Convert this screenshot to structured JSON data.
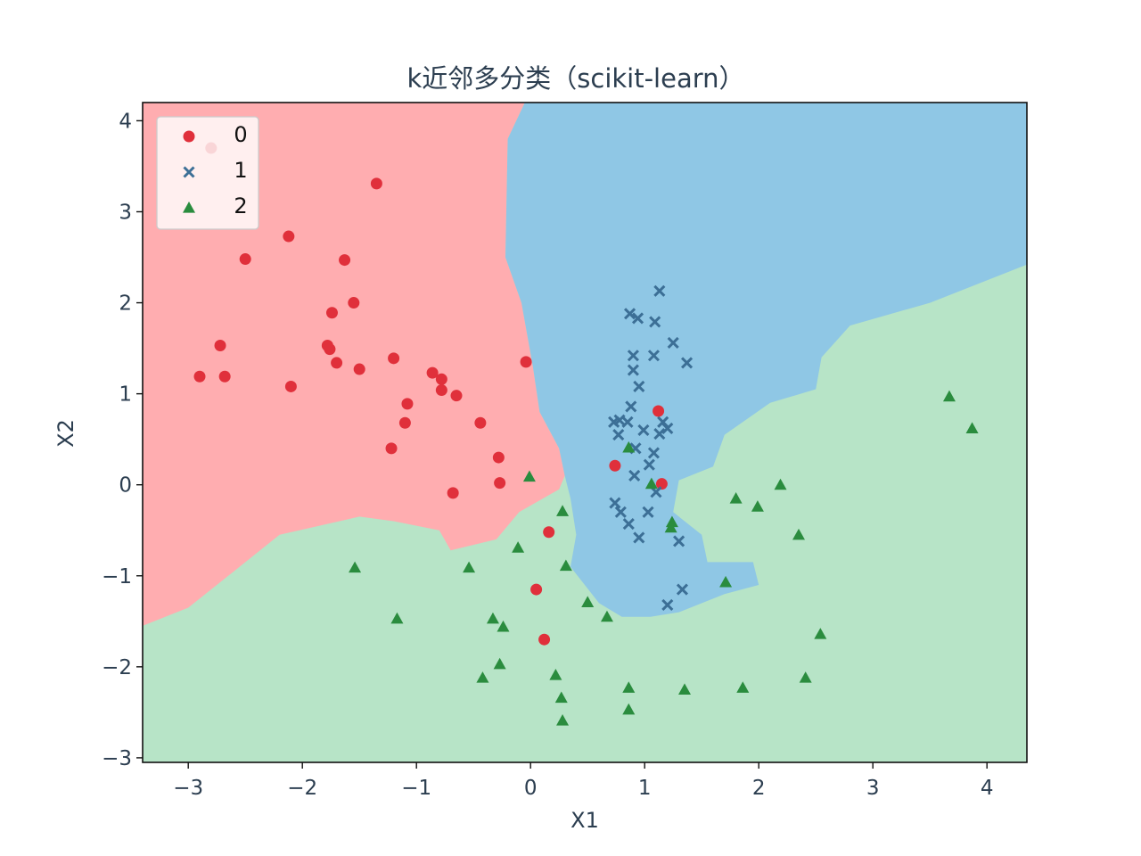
{
  "chart_data": {
    "type": "scatter",
    "title": "k近邻多分类（scikit-learn）",
    "xlabel": "X1",
    "ylabel": "X2",
    "xlim": [
      -3.4,
      4.35
    ],
    "ylim": [
      -3.05,
      4.2
    ],
    "xticks": [
      -3,
      -2,
      -1,
      0,
      1,
      2,
      3,
      4
    ],
    "yticks": [
      -3,
      -2,
      -1,
      0,
      1,
      2,
      3,
      4
    ],
    "xtick_labels": [
      "−3",
      "−2",
      "−1",
      "0",
      "1",
      "2",
      "3",
      "4"
    ],
    "ytick_labels": [
      "−3",
      "−2",
      "−1",
      "0",
      "1",
      "2",
      "3",
      "4"
    ],
    "grid": false,
    "legend": {
      "position": "top-left",
      "entries": [
        "0",
        "1",
        "2"
      ]
    },
    "regions": {
      "class0_color": "#ffadb0",
      "class1_color": "#8fc7e5",
      "class2_color": "#b7e4c7",
      "class0_boundary": [
        [
          -3.4,
          4.2
        ],
        [
          -0.05,
          4.2
        ],
        [
          -0.2,
          3.8
        ],
        [
          -0.22,
          2.5
        ],
        [
          -0.08,
          2.0
        ],
        [
          0.02,
          1.3
        ],
        [
          0.08,
          0.8
        ],
        [
          0.25,
          0.4
        ],
        [
          0.3,
          0.1
        ],
        [
          0.25,
          -0.05
        ],
        [
          -0.1,
          -0.3
        ],
        [
          -0.3,
          -0.6
        ],
        [
          -0.7,
          -0.72
        ],
        [
          -0.8,
          -0.5
        ],
        [
          -1.2,
          -0.4
        ],
        [
          -1.5,
          -0.35
        ],
        [
          -2.2,
          -0.55
        ],
        [
          -2.6,
          -0.95
        ],
        [
          -3.0,
          -1.35
        ],
        [
          -3.4,
          -1.55
        ]
      ],
      "class1_boundary": [
        [
          -0.05,
          4.2
        ],
        [
          4.35,
          4.2
        ],
        [
          4.35,
          2.42
        ],
        [
          3.5,
          2.0
        ],
        [
          2.8,
          1.75
        ],
        [
          2.55,
          1.4
        ],
        [
          2.5,
          1.05
        ],
        [
          2.1,
          0.9
        ],
        [
          1.7,
          0.55
        ],
        [
          1.6,
          0.2
        ],
        [
          1.3,
          0.05
        ],
        [
          1.25,
          -0.3
        ],
        [
          1.5,
          -0.55
        ],
        [
          1.55,
          -0.85
        ],
        [
          1.95,
          -0.85
        ],
        [
          2.0,
          -1.1
        ],
        [
          1.7,
          -1.2
        ],
        [
          1.3,
          -1.4
        ],
        [
          1.05,
          -1.45
        ],
        [
          0.8,
          -1.45
        ],
        [
          0.6,
          -1.3
        ],
        [
          0.35,
          -0.9
        ],
        [
          0.4,
          -0.55
        ],
        [
          0.35,
          -0.15
        ],
        [
          0.3,
          0.1
        ],
        [
          0.25,
          0.4
        ],
        [
          0.08,
          0.8
        ],
        [
          0.02,
          1.3
        ],
        [
          -0.08,
          2.0
        ],
        [
          -0.22,
          2.5
        ],
        [
          -0.2,
          3.8
        ]
      ]
    },
    "series": [
      {
        "name": "0",
        "marker": "circle",
        "color": "#e0303b",
        "x": [
          -2.8,
          -1.35,
          -2.12,
          -2.5,
          -1.63,
          -1.55,
          -1.74,
          -2.72,
          -1.78,
          -1.76,
          -1.7,
          -2.9,
          -2.68,
          -1.5,
          -1.2,
          -0.86,
          -0.78,
          -2.1,
          -0.78,
          -0.65,
          -1.08,
          -1.1,
          -0.44,
          -1.22,
          -0.28,
          -0.27,
          -0.68,
          -0.04,
          0.74,
          1.12,
          1.15,
          0.16,
          0.05,
          0.12
        ],
        "y": [
          3.7,
          3.31,
          2.73,
          2.48,
          2.47,
          2.0,
          1.89,
          1.53,
          1.53,
          1.49,
          1.34,
          1.19,
          1.19,
          1.27,
          1.39,
          1.23,
          1.16,
          1.08,
          1.04,
          0.98,
          0.89,
          0.68,
          0.68,
          0.4,
          0.3,
          0.02,
          -0.09,
          1.35,
          0.21,
          0.81,
          0.01,
          -0.52,
          -1.15,
          -1.7
        ]
      },
      {
        "name": "1",
        "marker": "x",
        "color": "#3c6f96",
        "x": [
          1.13,
          0.87,
          0.94,
          1.09,
          1.25,
          0.9,
          1.08,
          1.37,
          0.9,
          0.95,
          0.88,
          0.78,
          0.73,
          0.85,
          0.99,
          1.13,
          1.16,
          1.2,
          0.77,
          0.92,
          1.08,
          1.04,
          0.91,
          1.1,
          0.74,
          0.79,
          1.03,
          0.86,
          0.95,
          1.3,
          1.33,
          1.2
        ],
        "y": [
          2.13,
          1.88,
          1.83,
          1.79,
          1.56,
          1.42,
          1.42,
          1.34,
          1.26,
          1.08,
          0.86,
          0.71,
          0.69,
          0.69,
          0.6,
          0.56,
          0.69,
          0.62,
          0.55,
          0.4,
          0.35,
          0.22,
          0.1,
          -0.08,
          -0.2,
          -0.3,
          -0.3,
          -0.43,
          -0.58,
          -0.62,
          -1.15,
          -1.32
        ]
      },
      {
        "name": "2",
        "marker": "triangle",
        "color": "#2a8c3e",
        "x": [
          3.67,
          3.87,
          0.86,
          -0.01,
          1.06,
          2.19,
          1.8,
          1.99,
          1.24,
          1.23,
          2.35,
          0.28,
          -0.11,
          0.31,
          -1.54,
          -0.54,
          1.71,
          0.5,
          0.67,
          -1.17,
          -0.33,
          -0.24,
          2.54,
          -0.27,
          -0.42,
          0.22,
          2.41,
          0.86,
          1.35,
          1.86,
          0.27,
          0.86,
          0.28
        ],
        "y": [
          0.97,
          0.62,
          0.41,
          0.09,
          0.01,
          0.0,
          -0.15,
          -0.24,
          -0.41,
          -0.47,
          -0.55,
          -0.29,
          -0.69,
          -0.89,
          -0.91,
          -0.91,
          -1.07,
          -1.29,
          -1.45,
          -1.47,
          -1.47,
          -1.56,
          -1.64,
          -1.97,
          -2.12,
          -2.09,
          -2.12,
          -2.23,
          -2.25,
          -2.23,
          -2.34,
          -2.47,
          -2.59
        ]
      }
    ]
  }
}
